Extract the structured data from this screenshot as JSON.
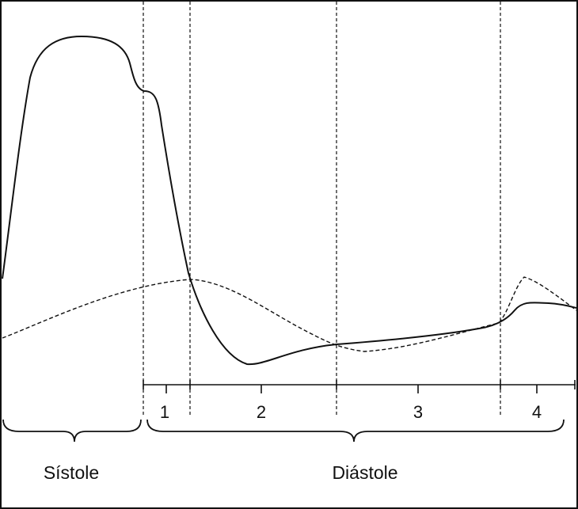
{
  "diagram": {
    "phase_labels": [
      "1",
      "2",
      "3",
      "4"
    ],
    "period_labels": {
      "systole": "Sístole",
      "diastole": "Diástole"
    },
    "colors": {
      "ink": "#111111",
      "background": "#ffffff"
    }
  }
}
